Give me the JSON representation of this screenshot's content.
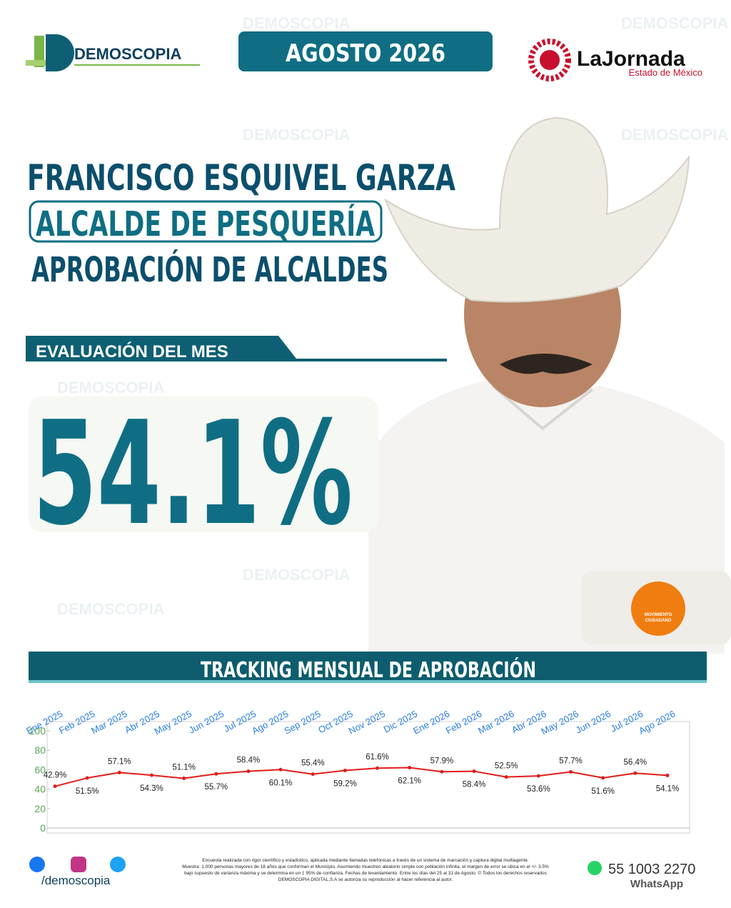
{
  "header": {
    "brand": "DEMOSCOPIA",
    "date": "AGOSTO 2026",
    "partner": "LaJornada",
    "partner_sub": "Estado de México"
  },
  "headline": {
    "name": "FRANCISCO ESQUIVEL GARZA",
    "position": "ALCALDE DE PESQUERÍA",
    "topic": "APROBACIÓN DE ALCALDES"
  },
  "evaluation": {
    "label": "EVALUACIÓN DEL MES",
    "value": "54.1%"
  },
  "party": {
    "line1": "MOVIMIENTO",
    "line2": "CIUDADANO"
  },
  "chart_data": {
    "type": "line",
    "title": "TRACKING MENSUAL DE APROBACIÓN",
    "categories": [
      "Ene 2025",
      "Feb 2025",
      "Mar 2025",
      "Abr 2025",
      "May 2025",
      "Jun 2025",
      "Jul 2025",
      "Ago 2025",
      "Sep 2025",
      "Oct 2025",
      "Nov 2025",
      "Dic 2025",
      "Ene 2026",
      "Feb 2026",
      "Mar 2026",
      "Abr 2026",
      "May 2026",
      "Jun 2026",
      "Jul 2026",
      "Ago 2026"
    ],
    "values": [
      42.9,
      51.5,
      57.1,
      54.3,
      51.1,
      55.7,
      58.4,
      60.1,
      55.4,
      59.2,
      61.6,
      62.1,
      57.9,
      58.4,
      52.5,
      53.6,
      57.7,
      51.6,
      56.4,
      54.1
    ],
    "value_labels": [
      "42.9%",
      "51.5%",
      "57.1%",
      "54.3%",
      "51.1%",
      "55.7%",
      "58.4%",
      "60.1%",
      "55.4%",
      "59.2%",
      "61.6%",
      "62.1%",
      "57.9%",
      "58.4%",
      "52.5%",
      "53.6%",
      "57.7%",
      "51.6%",
      "56.4%",
      "54.1%"
    ],
    "color": "#e31b1b",
    "ylim": [
      0,
      100
    ],
    "yticks": [
      0,
      20,
      40,
      60,
      80,
      100
    ]
  },
  "footer": {
    "social": "/demoscopia",
    "note_lines": [
      "Encuesta realizada con rigor científico y estadístico, aplicada mediante llamadas telefónicas a través de un sistema de marcación y captura digital multiagente.",
      "Muestra: 1,000 personas mayores de 18 años que conforman el Municipio. Asumiendo muestreo aleatorio simple con población infinita, el margen de error se ubica en el +/- 3.5%",
      "bajo supuesto de varianza máxima y se determina en un ‡ 95% de confianza. Fechas de levantamiento: Entre los días del 25 al 31 de Agosto. © Todos los derechos reservados",
      "DEMOSCOPIA DIGITAL,S.A se autoriza su reproducción al hacer referencia al autor."
    ],
    "phone": "55 1003 2270",
    "phone_label": "WhatsApp"
  }
}
